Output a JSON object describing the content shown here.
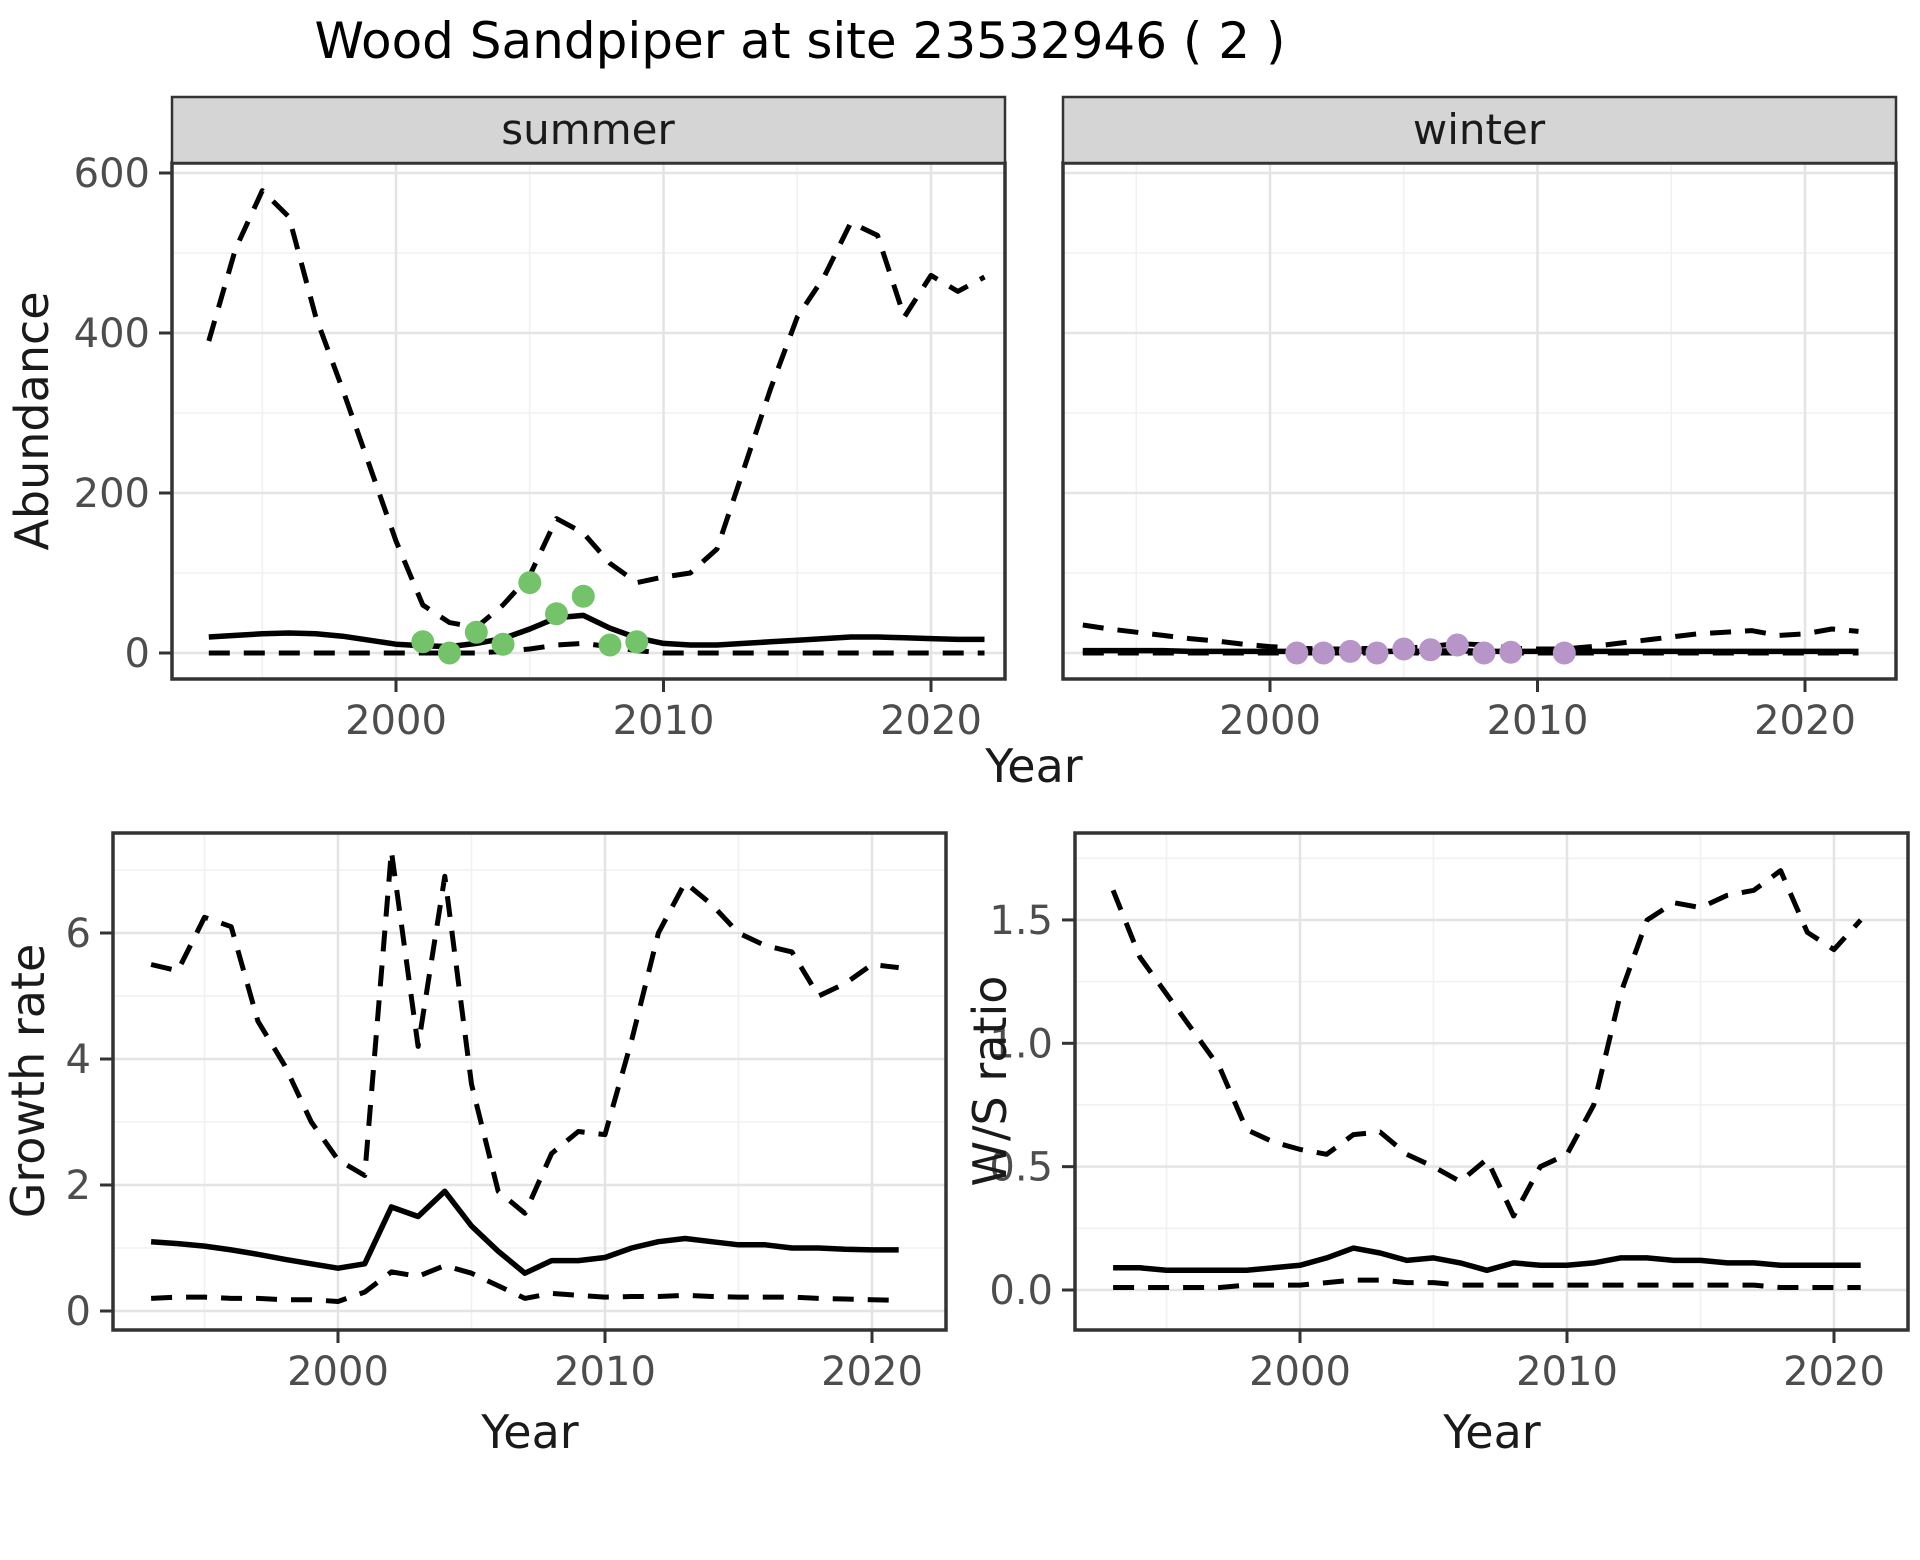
{
  "figure": {
    "title": "Wood Sandpiper at site 23532946 ( 2 )"
  },
  "facets": {
    "summer_label": "summer",
    "winter_label": "winter"
  },
  "colors": {
    "summer_points": "#74c36a",
    "winter_points": "#b795c8",
    "line": "#000000",
    "strip_bg": "#d5d5d5",
    "panel_border": "#333333",
    "grid_major": "#e4e4e4",
    "grid_minor": "#f1f1f1",
    "tick_text": "#4d4d4d"
  },
  "axes": {
    "abundance": {
      "title": "Abundance",
      "ticks": [
        "0",
        "200",
        "400",
        "600"
      ]
    },
    "year_top": {
      "title": "Year",
      "ticks": [
        "2000",
        "2010",
        "2020"
      ]
    },
    "growth": {
      "title": "Growth rate",
      "ticks": [
        "0",
        "2",
        "4",
        "6"
      ]
    },
    "ws": {
      "title": "W/S ratio",
      "ticks": [
        "0.0",
        "0.5",
        "1.0",
        "1.5"
      ]
    },
    "year_bottom": {
      "title": "Year",
      "ticks": [
        "2000",
        "2010",
        "2020"
      ]
    }
  },
  "chart_data": [
    {
      "id": "abundance_summer",
      "type": "line",
      "facet": "summer",
      "xlabel": "Year",
      "ylabel": "Abundance",
      "xlim": [
        1991.6,
        2023.9
      ],
      "ylim": [
        -32,
        612
      ],
      "x_ticks": [
        2000,
        2010,
        2020
      ],
      "y_ticks": [
        0,
        200,
        400,
        600
      ],
      "grid": true,
      "years": [
        1993,
        1994,
        1995,
        1996,
        1997,
        1998,
        1999,
        2000,
        2001,
        2002,
        2003,
        2004,
        2005,
        2006,
        2007,
        2008,
        2009,
        2010,
        2011,
        2012,
        2013,
        2014,
        2015,
        2016,
        2017,
        2018,
        2019,
        2020,
        2021,
        2022
      ],
      "series": [
        {
          "name": "upper_95ci",
          "style": "dashed",
          "values": [
            390,
            505,
            578,
            545,
            420,
            330,
            235,
            140,
            60,
            38,
            32,
            60,
            97,
            168,
            150,
            112,
            88,
            95,
            100,
            130,
            230,
            330,
            420,
            470,
            538,
            522,
            420,
            472,
            452,
            470
          ]
        },
        {
          "name": "median",
          "style": "solid",
          "values": [
            20,
            22,
            24,
            25,
            24,
            21,
            16,
            11,
            9,
            8,
            12,
            18,
            30,
            44,
            47,
            31,
            19,
            12,
            10,
            10,
            12,
            14,
            16,
            18,
            20,
            20,
            19,
            18,
            17,
            17
          ]
        },
        {
          "name": "lower_95ci",
          "style": "dashed",
          "values": [
            0,
            0,
            0,
            0,
            0,
            0,
            0,
            0,
            0,
            0,
            0,
            2,
            5,
            10,
            12,
            8,
            3,
            0,
            0,
            0,
            0,
            0,
            0,
            0,
            0,
            0,
            0,
            0,
            0,
            0
          ]
        }
      ],
      "points": {
        "name": "observed_counts",
        "color": "#74c36a",
        "years": [
          2001,
          2002,
          2003,
          2004,
          2005,
          2006,
          2007,
          2008,
          2009
        ],
        "values": [
          14,
          0,
          26,
          11,
          88,
          49,
          71,
          10,
          14
        ]
      }
    },
    {
      "id": "abundance_winter",
      "type": "line",
      "facet": "winter",
      "xlabel": "Year",
      "ylabel": "Abundance",
      "xlim": [
        1991.6,
        2023.9
      ],
      "ylim": [
        -32,
        612
      ],
      "x_ticks": [
        2000,
        2010,
        2020
      ],
      "y_ticks": [
        0,
        200,
        400,
        600
      ],
      "grid": true,
      "years": [
        1993,
        1994,
        1995,
        1996,
        1997,
        1998,
        1999,
        2000,
        2001,
        2002,
        2003,
        2004,
        2005,
        2006,
        2007,
        2008,
        2009,
        2010,
        2011,
        2012,
        2013,
        2014,
        2015,
        2016,
        2017,
        2018,
        2019,
        2020,
        2021,
        2022
      ],
      "series": [
        {
          "name": "upper_95ci",
          "style": "dashed",
          "values": [
            35,
            30,
            26,
            22,
            18,
            15,
            11,
            8,
            6,
            5,
            5,
            6,
            6,
            8,
            12,
            10,
            6,
            5,
            5,
            8,
            12,
            16,
            20,
            24,
            26,
            28,
            22,
            24,
            30,
            27
          ]
        },
        {
          "name": "median",
          "style": "solid",
          "values": [
            3,
            3,
            3,
            3,
            2,
            2,
            2,
            2,
            2,
            2,
            2,
            2,
            2,
            2,
            3,
            2,
            2,
            2,
            2,
            2,
            2,
            2,
            2,
            2,
            2,
            2,
            2,
            2,
            2,
            2
          ]
        },
        {
          "name": "lower_95ci",
          "style": "dashed",
          "values": [
            0,
            0,
            0,
            0,
            0,
            0,
            0,
            0,
            0,
            0,
            0,
            0,
            0,
            0,
            0,
            0,
            0,
            0,
            0,
            0,
            0,
            0,
            0,
            0,
            0,
            0,
            0,
            0,
            0,
            0
          ]
        }
      ],
      "points": {
        "name": "observed_counts",
        "color": "#b795c8",
        "years": [
          2001,
          2002,
          2003,
          2004,
          2005,
          2006,
          2007,
          2008,
          2009,
          2011
        ],
        "values": [
          0,
          0,
          2,
          0,
          5,
          4,
          10,
          0,
          1,
          0
        ]
      }
    },
    {
      "id": "growth_rate",
      "type": "line",
      "xlabel": "Year",
      "ylabel": "Growth rate",
      "xlim": [
        1991.6,
        2022.8
      ],
      "ylim": [
        -0.3,
        7.59
      ],
      "x_ticks": [
        2000,
        2010,
        2020
      ],
      "y_ticks": [
        0,
        2,
        4,
        6
      ],
      "grid": true,
      "years": [
        1993,
        1994,
        1995,
        1996,
        1997,
        1998,
        1999,
        2000,
        2001,
        2002,
        2003,
        2004,
        2005,
        2006,
        2007,
        2008,
        2009,
        2010,
        2011,
        2012,
        2013,
        2014,
        2015,
        2016,
        2017,
        2018,
        2019,
        2020,
        2021
      ],
      "series": [
        {
          "name": "upper_95ci",
          "style": "dashed",
          "values": [
            5.5,
            5.4,
            6.25,
            6.1,
            4.6,
            3.9,
            3.0,
            2.4,
            2.15,
            7.3,
            4.2,
            6.9,
            3.6,
            1.9,
            1.55,
            2.5,
            2.85,
            2.8,
            4.3,
            6.0,
            6.8,
            6.45,
            6.0,
            5.8,
            5.7,
            5.0,
            5.2,
            5.5,
            5.45
          ]
        },
        {
          "name": "median",
          "style": "solid",
          "values": [
            1.1,
            1.07,
            1.03,
            0.97,
            0.9,
            0.82,
            0.75,
            0.68,
            0.75,
            1.65,
            1.5,
            1.9,
            1.35,
            0.95,
            0.6,
            0.8,
            0.8,
            0.85,
            1.0,
            1.1,
            1.15,
            1.1,
            1.05,
            1.05,
            1.0,
            1.0,
            0.98,
            0.97,
            0.97
          ]
        },
        {
          "name": "lower_95ci",
          "style": "dashed",
          "values": [
            0.2,
            0.22,
            0.22,
            0.2,
            0.2,
            0.18,
            0.18,
            0.15,
            0.3,
            0.62,
            0.55,
            0.72,
            0.6,
            0.4,
            0.2,
            0.28,
            0.25,
            0.22,
            0.23,
            0.23,
            0.25,
            0.23,
            0.22,
            0.22,
            0.22,
            0.2,
            0.19,
            0.18,
            0.17
          ]
        }
      ]
    },
    {
      "id": "ws_ratio",
      "type": "line",
      "xlabel": "Year",
      "ylabel": "W/S ratio",
      "xlim": [
        1991.6,
        2022.8
      ],
      "ylim": [
        -0.16,
        1.85
      ],
      "x_ticks": [
        2000,
        2010,
        2020
      ],
      "y_ticks": [
        0.0,
        0.5,
        1.0,
        1.5
      ],
      "grid": true,
      "years": [
        1993,
        1994,
        1995,
        1996,
        1997,
        1998,
        1999,
        2000,
        2001,
        2002,
        2003,
        2004,
        2005,
        2006,
        2007,
        2008,
        2009,
        2010,
        2011,
        2012,
        2013,
        2014,
        2015,
        2016,
        2017,
        2018,
        2019,
        2020,
        2021
      ],
      "series": [
        {
          "name": "upper_95ci",
          "style": "dashed",
          "values": [
            1.62,
            1.35,
            1.2,
            1.05,
            0.9,
            0.65,
            0.6,
            0.57,
            0.55,
            0.63,
            0.64,
            0.55,
            0.5,
            0.44,
            0.53,
            0.3,
            0.5,
            0.55,
            0.75,
            1.2,
            1.5,
            1.57,
            1.55,
            1.6,
            1.62,
            1.7,
            1.45,
            1.38,
            1.5
          ]
        },
        {
          "name": "median",
          "style": "solid",
          "values": [
            0.09,
            0.09,
            0.08,
            0.08,
            0.08,
            0.08,
            0.09,
            0.1,
            0.13,
            0.17,
            0.15,
            0.12,
            0.13,
            0.11,
            0.08,
            0.11,
            0.1,
            0.1,
            0.11,
            0.13,
            0.13,
            0.12,
            0.12,
            0.11,
            0.11,
            0.1,
            0.1,
            0.1,
            0.1
          ]
        },
        {
          "name": "lower_95ci",
          "style": "dashed",
          "values": [
            0.01,
            0.01,
            0.01,
            0.01,
            0.01,
            0.02,
            0.02,
            0.02,
            0.03,
            0.04,
            0.04,
            0.03,
            0.03,
            0.02,
            0.02,
            0.02,
            0.02,
            0.02,
            0.02,
            0.02,
            0.02,
            0.02,
            0.02,
            0.02,
            0.02,
            0.01,
            0.01,
            0.01,
            0.01
          ]
        }
      ]
    }
  ]
}
